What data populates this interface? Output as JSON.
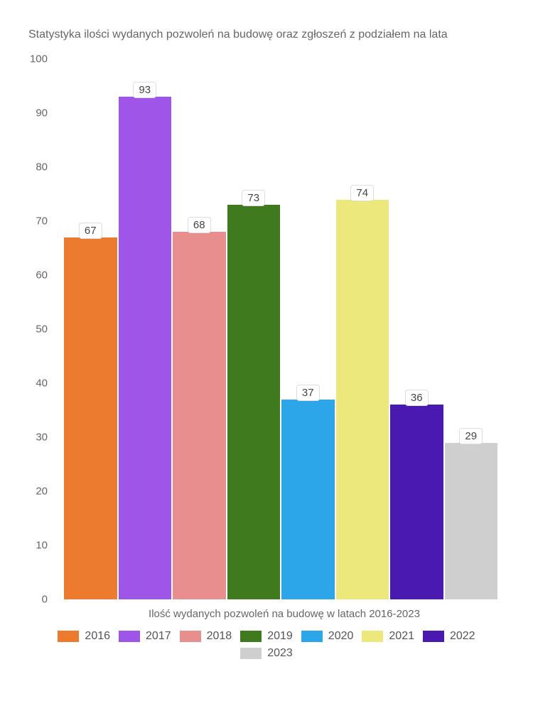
{
  "chart": {
    "type": "bar",
    "title": "Statystyka ilości wydanych pozwoleń na budowę oraz zgłoszeń z podziałem na lata",
    "title_fontsize": 16,
    "title_color": "#666666",
    "xlabel": "Ilość wydanych pozwoleń na budowę w latach 2016-2023",
    "label_fontsize": 15,
    "label_color": "#666666",
    "ylim": [
      0,
      100
    ],
    "ytick_step": 10,
    "yticks": [
      0,
      10,
      20,
      30,
      40,
      50,
      60,
      70,
      80,
      90,
      100
    ],
    "background_color": "#ffffff",
    "bar_width": 0.97,
    "data_label_bg": "#ffffff",
    "data_label_border": "#dddddd",
    "data_label_fontsize": 15,
    "data_label_color": "#444444",
    "categories": [
      "2016",
      "2017",
      "2018",
      "2019",
      "2020",
      "2021",
      "2022",
      "2023"
    ],
    "values": [
      67,
      93,
      68,
      73,
      37,
      74,
      36,
      29
    ],
    "bar_colors": [
      "#ec7b30",
      "#9e55e8",
      "#e98e8e",
      "#3f7a1f",
      "#2ca6e8",
      "#ece87b",
      "#4a19b0",
      "#cfcfcf"
    ],
    "legend_fontsize": 16,
    "legend_swatch_width": 30,
    "legend_swatch_height": 16
  }
}
